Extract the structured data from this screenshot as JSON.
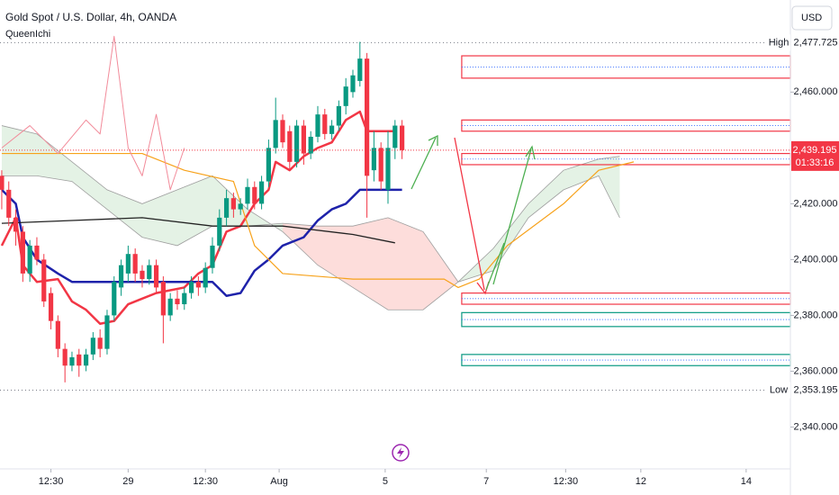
{
  "chart_data": {
    "type": "candlestick",
    "title": "Gold Spot / U.S. Dollar, 4h, OANDA",
    "subtitle": "QueenIchi",
    "currency": "USD",
    "up_color": "#089981",
    "down_color": "#f23645",
    "xlim": [
      -0.25,
      112.3
    ],
    "ylim": [
      2325,
      2493
    ],
    "xticks": [
      {
        "value": 7,
        "label": "12:30"
      },
      {
        "value": 18,
        "label": "29"
      },
      {
        "value": 29,
        "label": "12:30"
      },
      {
        "value": 39.5,
        "label": "Aug"
      },
      {
        "value": 54.6,
        "label": "5"
      },
      {
        "value": 69,
        "label": "7"
      },
      {
        "value": 80.3,
        "label": "12:30"
      },
      {
        "value": 91,
        "label": "12"
      },
      {
        "value": 106,
        "label": "14"
      }
    ],
    "yticks": [
      {
        "value": 2340,
        "label": "2,340.000"
      },
      {
        "value": 2360,
        "label": "2,360.000"
      },
      {
        "value": 2380,
        "label": "2,380.000"
      },
      {
        "value": 2400,
        "label": "2,400.000"
      },
      {
        "value": 2420,
        "label": "2,420.000"
      },
      {
        "value": 2460,
        "label": "2,460.000"
      }
    ],
    "open": [
      2430,
      2425,
      2415,
      2410,
      2395,
      2405,
      2400,
      2388,
      2378,
      2368,
      2362,
      2366,
      2362,
      2366,
      2372,
      2368,
      2380,
      2390,
      2395,
      2402,
      2396,
      2393,
      2398,
      2392,
      2380,
      2386,
      2384,
      2388,
      2392,
      2390,
      2397,
      2405,
      2415,
      2422,
      2418,
      2420,
      2426,
      2420,
      2428,
      2440,
      2450,
      2446,
      2435,
      2448,
      2438,
      2444,
      2452,
      2445,
      2448,
      2455,
      2460,
      2464,
      2472,
      2432,
      2440,
      2425,
      2440,
      2448
    ],
    "high": [
      2432,
      2428,
      2418,
      2412,
      2407,
      2408,
      2402,
      2390,
      2380,
      2370,
      2367,
      2368,
      2368,
      2374,
      2375,
      2382,
      2394,
      2400,
      2405,
      2404,
      2398,
      2400,
      2400,
      2394,
      2388,
      2389,
      2390,
      2394,
      2394,
      2399,
      2408,
      2418,
      2425,
      2424,
      2422,
      2429,
      2428,
      2430,
      2443,
      2458,
      2452,
      2448,
      2450,
      2450,
      2446,
      2455,
      2454,
      2450,
      2457,
      2465,
      2468,
      2478,
      2474,
      2446,
      2442,
      2446,
      2450,
      2450
    ],
    "low": [
      2418,
      2412,
      2405,
      2392,
      2392,
      2398,
      2383,
      2375,
      2365,
      2356,
      2360,
      2358,
      2360,
      2364,
      2365,
      2366,
      2378,
      2387,
      2392,
      2392,
      2390,
      2391,
      2388,
      2370,
      2378,
      2382,
      2382,
      2386,
      2387,
      2388,
      2395,
      2403,
      2412,
      2415,
      2416,
      2418,
      2418,
      2418,
      2426,
      2438,
      2440,
      2432,
      2433,
      2434,
      2436,
      2442,
      2443,
      2443,
      2446,
      2452,
      2458,
      2462,
      2415,
      2428,
      2425,
      2420,
      2436,
      2436
    ],
    "close": [
      2425,
      2415,
      2410,
      2395,
      2405,
      2400,
      2385,
      2378,
      2368,
      2362,
      2365,
      2362,
      2366,
      2372,
      2368,
      2380,
      2392,
      2398,
      2402,
      2395,
      2393,
      2398,
      2390,
      2380,
      2386,
      2384,
      2388,
      2392,
      2390,
      2397,
      2405,
      2415,
      2422,
      2418,
      2420,
      2426,
      2420,
      2428,
      2440,
      2450,
      2442,
      2435,
      2448,
      2438,
      2444,
      2452,
      2445,
      2448,
      2455,
      2462,
      2466,
      2472,
      2430,
      2440,
      2428,
      2440,
      2448,
      2439.195
    ],
    "lines": [
      {
        "color": "#f23645",
        "width": 2.5,
        "x": [
          0,
          2,
          3,
          5,
          8,
          10,
          12,
          14,
          16,
          18,
          20,
          22,
          24,
          26,
          28,
          30,
          32,
          34,
          36,
          38,
          39,
          41,
          43,
          45,
          47,
          49,
          51,
          52,
          54,
          56
        ],
        "values": [
          2405,
          2415,
          2398,
          2392,
          2393,
          2385,
          2382,
          2377,
          2378,
          2384,
          2386,
          2388,
          2389,
          2390,
          2395,
          2398,
          2410,
          2412,
          2420,
          2425,
          2435,
          2432,
          2437,
          2440,
          2442,
          2450,
          2453,
          2446,
          2446,
          2446
        ]
      },
      {
        "color": "#1e22aa",
        "width": 2.5,
        "x": [
          0,
          2,
          3,
          5,
          8,
          10,
          18,
          30,
          32,
          34,
          36,
          38,
          40,
          43,
          45,
          47,
          49,
          51,
          55,
          57
        ],
        "values": [
          2425,
          2420,
          2408,
          2400,
          2395,
          2392,
          2392,
          2392,
          2387,
          2388,
          2396,
          2400,
          2405,
          2408,
          2414,
          2418,
          2420,
          2425,
          2425,
          2425
        ]
      },
      {
        "color": "#222222",
        "width": 1.3,
        "x": [
          0,
          10,
          20,
          30,
          40,
          50,
          56
        ],
        "values": [
          2413,
          2414,
          2415,
          2412,
          2412,
          2409,
          2406
        ]
      },
      {
        "color": "#f7a21b",
        "width": 1.2,
        "x": [
          0,
          20,
          26,
          33,
          36,
          40,
          50,
          63,
          65,
          68,
          72,
          80,
          85,
          90
        ],
        "values": [
          2438,
          2438,
          2432,
          2428,
          2405,
          2395,
          2393,
          2393,
          2390,
          2393,
          2405,
          2420,
          2432,
          2435
        ]
      },
      {
        "color": "#f28b9a",
        "width": 1,
        "x": [
          0,
          4,
          8,
          12,
          14,
          16,
          18,
          20,
          22,
          24,
          26
        ],
        "values": [
          2440,
          2448,
          2438,
          2450,
          2445,
          2480,
          2440,
          2430,
          2452,
          2425,
          2440
        ]
      }
    ],
    "cloud": {
      "x": [
        0,
        5,
        10,
        15,
        20,
        25,
        30,
        35,
        40,
        45,
        50,
        55,
        60,
        65,
        70,
        75,
        80,
        85,
        88
      ],
      "span_a": [
        2448,
        2445,
        2435,
        2425,
        2420,
        2425,
        2430,
        2418,
        2410,
        2398,
        2390,
        2382,
        2382,
        2392,
        2404,
        2420,
        2432,
        2436,
        2437
      ],
      "span_b": [
        2430,
        2430,
        2428,
        2418,
        2408,
        2405,
        2412,
        2412,
        2413,
        2412,
        2412,
        2415,
        2410,
        2392,
        2396,
        2415,
        2425,
        2430,
        2415
      ]
    },
    "zones": [
      {
        "low": 2465,
        "high": 2473,
        "color": "#f23645"
      },
      {
        "low": 2446,
        "high": 2450,
        "color": "#f23645"
      },
      {
        "low": 2434,
        "high": 2438,
        "color": "#f23645"
      },
      {
        "low": 2384,
        "high": 2388,
        "color": "#f23645"
      },
      {
        "low": 2376,
        "high": 2381,
        "color": "#089981"
      },
      {
        "low": 2362,
        "high": 2366,
        "color": "#089981"
      }
    ],
    "markers": [
      {
        "name": "High",
        "value": 2477.725,
        "label": "2,477.725"
      },
      {
        "name": "Low",
        "value": 2353.195,
        "label": "2,353.195"
      }
    ],
    "last_price": {
      "value": 2439.195,
      "label": "2,439.195",
      "countdown": "01:33:16"
    }
  }
}
